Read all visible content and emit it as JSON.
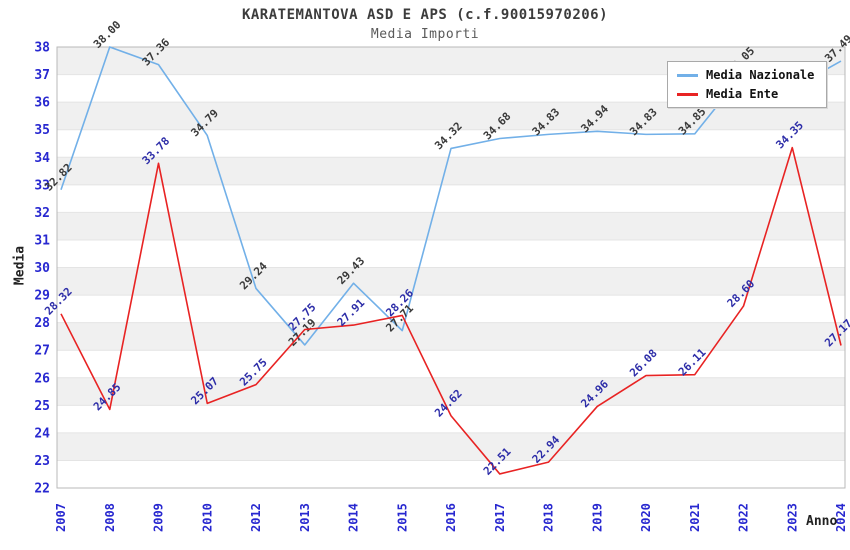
{
  "chart_data": {
    "type": "line",
    "title": "KARATEMANTOVA ASD E APS (c.f.90015970206)",
    "subtitle": "Media Importi",
    "xlabel": "Anno",
    "ylabel": "Media",
    "ylim": [
      22,
      38
    ],
    "ytick_step": 1,
    "grid": "horizontal",
    "gray_band_lower_edges": [
      23,
      25,
      27,
      29,
      31,
      33,
      35,
      37
    ],
    "x": [
      "2007",
      "2008",
      "2009",
      "2010",
      "2012",
      "2013",
      "2014",
      "2015",
      "2016",
      "2017",
      "2018",
      "2019",
      "2020",
      "2021",
      "2022",
      "2023",
      "2024"
    ],
    "series": [
      {
        "name": "Media Nazionale",
        "color": "#72b0e8",
        "label_color": "#3a3a3a",
        "values": [
          32.82,
          38.0,
          37.36,
          34.79,
          29.24,
          27.19,
          29.43,
          27.71,
          34.32,
          34.68,
          34.83,
          34.94,
          34.83,
          34.85,
          37.05,
          36.5,
          37.49
        ],
        "labels": [
          "32.82",
          "38.00",
          "37.36",
          "34.79",
          "29.24",
          "27.19",
          "29.43",
          "27.71",
          "34.32",
          "34.68",
          "34.83",
          "34.94",
          "34.83",
          "34.85",
          "37.05",
          "",
          "37.49"
        ]
      },
      {
        "name": "Media Ente",
        "color": "#e82323",
        "label_color": "#2d2da8",
        "values": [
          28.32,
          24.85,
          33.78,
          25.07,
          25.75,
          27.75,
          27.91,
          28.26,
          24.62,
          22.51,
          22.94,
          24.96,
          26.08,
          26.11,
          28.6,
          34.35,
          27.17
        ],
        "labels": [
          "28.32",
          "24.85",
          "33.78",
          "25.07",
          "25.75",
          "27.75",
          "27.91",
          "28.26",
          "24.62",
          "22.51",
          "22.94",
          "24.96",
          "26.08",
          "26.11",
          "28.60",
          "34.35",
          "27.17"
        ]
      }
    ],
    "legend": {
      "position": "top-right",
      "items": [
        "Media Nazionale",
        "Media Ente"
      ]
    },
    "colors": {
      "band": "#f0f0f0",
      "grid": "#e4e4e4",
      "frame": "#b9b9b9",
      "tick": "#2828d0",
      "title": "#3c3c3c",
      "subtitle": "#5a5a5a",
      "axis_title": "#222222"
    }
  }
}
